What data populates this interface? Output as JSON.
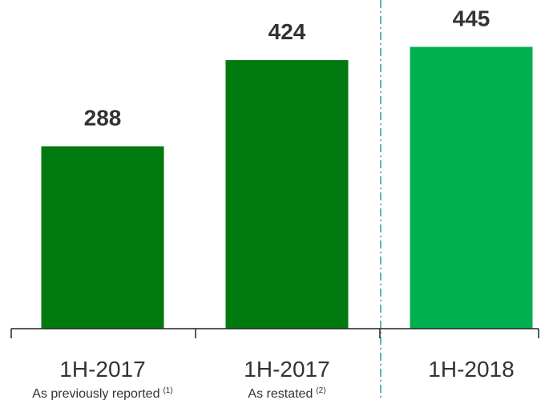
{
  "chart_data": {
    "type": "bar",
    "categories": [
      "1H-2017",
      "1H-2017",
      "1H-2018"
    ],
    "sublabels": [
      "As previously reported",
      "As restated",
      null
    ],
    "notes": [
      "(1)",
      "(2)",
      null
    ],
    "values": [
      288,
      424,
      445
    ],
    "colors": [
      "#007a0f",
      "#007a0f",
      "#00b050"
    ],
    "ylim": [
      0,
      500
    ]
  }
}
